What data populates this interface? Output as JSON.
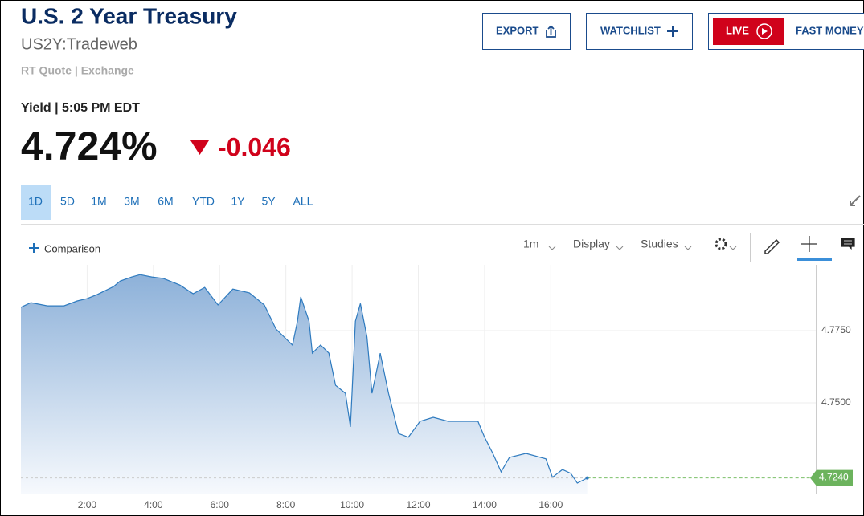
{
  "header": {
    "title": "U.S. 2 Year Treasury",
    "symbol": "US2Y:Tradeweb",
    "source": "RT Quote | Exchange"
  },
  "buttons": {
    "export": "EXPORT",
    "watchlist": "WATCHLIST",
    "live": "LIVE",
    "fast_money": "FAST MONEY"
  },
  "quote": {
    "label": "Yield | 5:05 PM EDT",
    "price": "4.724%",
    "change": "-0.046"
  },
  "ranges": [
    "1D",
    "5D",
    "1M",
    "3M",
    "6M",
    "YTD",
    "1Y",
    "5Y",
    "ALL"
  ],
  "toolbar": {
    "comparison": "Comparison",
    "interval": "1m",
    "display": "Display",
    "studies": "Studies"
  },
  "chart_data": {
    "type": "line",
    "color": "#2f7bbf",
    "grid": true,
    "x": [
      0,
      0.3,
      0.8,
      1.3,
      1.7,
      2.0,
      2.3,
      2.8,
      3.0,
      3.35,
      3.6,
      3.95,
      4.3,
      4.8,
      5.2,
      5.55,
      5.95,
      6.4,
      6.9,
      7.35,
      7.7,
      7.95,
      8.2,
      8.35,
      8.45,
      8.7,
      8.8,
      9.05,
      9.3,
      9.5,
      9.8,
      9.95,
      10.1,
      10.25,
      10.45,
      10.6,
      10.85,
      11.1,
      11.4,
      11.7,
      12.05,
      12.45,
      12.9,
      13.8,
      14.0,
      14.25,
      14.5,
      14.75,
      15.25,
      15.85,
      16.05,
      16.35,
      16.6,
      16.8,
      17.1
    ],
    "values": [
      4.7831,
      4.7847,
      4.7836,
      4.7836,
      4.7853,
      4.7861,
      4.7875,
      4.7903,
      4.7922,
      4.7936,
      4.7944,
      4.7936,
      4.7931,
      4.7908,
      4.7878,
      4.79,
      4.7839,
      4.7894,
      4.7881,
      4.7839,
      4.7756,
      4.7728,
      4.77,
      4.7783,
      4.7867,
      4.7783,
      4.7672,
      4.77,
      4.7672,
      4.7561,
      4.7533,
      4.7417,
      4.7783,
      4.7844,
      4.7728,
      4.7533,
      4.7672,
      4.7533,
      4.7394,
      4.7381,
      4.7436,
      4.745,
      4.7436,
      4.7436,
      4.7381,
      4.7325,
      4.7261,
      4.7311,
      4.7325,
      4.7306,
      4.7242,
      4.7269,
      4.7256,
      4.7222,
      4.724
    ],
    "xlim": [
      0,
      24
    ],
    "ylim": [
      4.7186,
      4.7978
    ],
    "xticks": [
      {
        "value": 2,
        "label": "2:00"
      },
      {
        "value": 4,
        "label": "4:00"
      },
      {
        "value": 6,
        "label": "6:00"
      },
      {
        "value": 8,
        "label": "8:00"
      },
      {
        "value": 10,
        "label": "10:00"
      },
      {
        "value": 12,
        "label": "12:00"
      },
      {
        "value": 14,
        "label": "14:00"
      },
      {
        "value": 16,
        "label": "16:00"
      }
    ],
    "yticks": [
      {
        "value": 4.75,
        "label": "4.7500"
      },
      {
        "value": 4.775,
        "label": "4.7750"
      }
    ],
    "last_label": {
      "value": 4.724,
      "label": "4.7240"
    }
  }
}
